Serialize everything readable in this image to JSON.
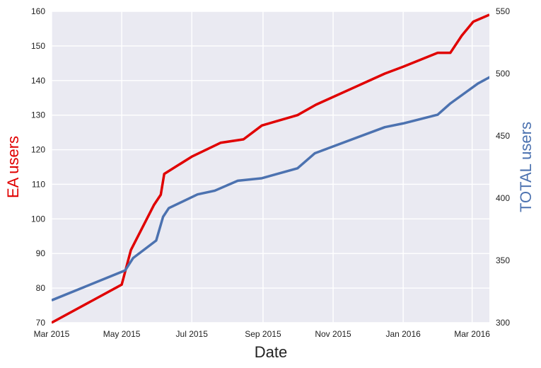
{
  "chart_data": {
    "type": "line",
    "xlabel": "Date",
    "x_ticks": [
      "Mar 2015",
      "May 2015",
      "Jul 2015",
      "Sep 2015",
      "Nov 2015",
      "Jan 2016",
      "Mar 2016"
    ],
    "x_tick_dates": [
      "2015-03-01",
      "2015-05-01",
      "2015-07-01",
      "2015-09-01",
      "2015-11-01",
      "2016-01-01",
      "2016-03-01"
    ],
    "xlim": [
      "2015-03-01",
      "2016-03-16"
    ],
    "grid": true,
    "background": "#eaeaf2",
    "left_axis": {
      "label": "EA users",
      "color": "#e00000",
      "ylim": [
        70,
        160
      ],
      "ticks": [
        "70",
        "80",
        "90",
        "100",
        "110",
        "120",
        "130",
        "140",
        "150",
        "160"
      ]
    },
    "right_axis": {
      "label": "TOTAL users",
      "color": "#4c72b0",
      "ylim": [
        300,
        550
      ],
      "ticks": [
        "300",
        "350",
        "400",
        "450",
        "500",
        "550"
      ]
    },
    "series": [
      {
        "axis": "left",
        "color": "#e00000",
        "points": [
          [
            "2015-03-01",
            70
          ],
          [
            "2015-05-01",
            81
          ],
          [
            "2015-05-09",
            91
          ],
          [
            "2015-05-29",
            104
          ],
          [
            "2015-06-04",
            107
          ],
          [
            "2015-06-07",
            113
          ],
          [
            "2015-07-01",
            118
          ],
          [
            "2015-07-26",
            122
          ],
          [
            "2015-08-15",
            123
          ],
          [
            "2015-08-31",
            127
          ],
          [
            "2015-10-01",
            130
          ],
          [
            "2015-10-17",
            133
          ],
          [
            "2015-12-16",
            142
          ],
          [
            "2016-01-01",
            144
          ],
          [
            "2016-01-31",
            148
          ],
          [
            "2016-02-11",
            148
          ],
          [
            "2016-02-21",
            153
          ],
          [
            "2016-03-02",
            157
          ],
          [
            "2016-03-16",
            159
          ]
        ]
      },
      {
        "axis": "right",
        "color": "#4c72b0",
        "points": [
          [
            "2015-03-01",
            318
          ],
          [
            "2015-05-04",
            342
          ],
          [
            "2015-05-11",
            352
          ],
          [
            "2015-05-31",
            366
          ],
          [
            "2015-06-06",
            385
          ],
          [
            "2015-06-11",
            392
          ],
          [
            "2015-07-06",
            403
          ],
          [
            "2015-07-21",
            406
          ],
          [
            "2015-08-10",
            414
          ],
          [
            "2015-08-31",
            416
          ],
          [
            "2015-10-01",
            424
          ],
          [
            "2015-10-16",
            436
          ],
          [
            "2015-12-16",
            457
          ],
          [
            "2016-01-01",
            460
          ],
          [
            "2016-01-31",
            467
          ],
          [
            "2016-02-11",
            476
          ],
          [
            "2016-02-26",
            486
          ],
          [
            "2016-03-06",
            492
          ],
          [
            "2016-03-16",
            497
          ],
          [
            "2016-03-31",
            502
          ]
        ]
      }
    ]
  }
}
